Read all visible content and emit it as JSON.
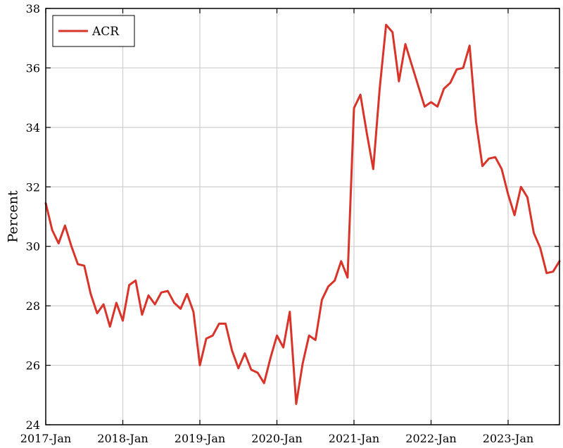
{
  "chart_data": {
    "type": "line",
    "title": "",
    "xlabel": "",
    "ylabel": "Percent",
    "ylim": [
      24,
      38
    ],
    "xlim": [
      "2017-01",
      "2023-09"
    ],
    "yticks": [
      24,
      26,
      28,
      30,
      32,
      34,
      36,
      38
    ],
    "xtick_labels": [
      "2017-Jan",
      "2018-Jan",
      "2019-Jan",
      "2020-Jan",
      "2021-Jan",
      "2022-Jan",
      "2023-Jan"
    ],
    "grid": true,
    "legend_position": "top-left",
    "series_color": "#d8342a",
    "series": [
      {
        "name": "ACR",
        "x": [
          "2017-01",
          "2017-02",
          "2017-03",
          "2017-04",
          "2017-05",
          "2017-06",
          "2017-07",
          "2017-08",
          "2017-09",
          "2017-10",
          "2017-11",
          "2017-12",
          "2018-01",
          "2018-02",
          "2018-03",
          "2018-04",
          "2018-05",
          "2018-06",
          "2018-07",
          "2018-08",
          "2018-09",
          "2018-10",
          "2018-11",
          "2018-12",
          "2019-01",
          "2019-02",
          "2019-03",
          "2019-04",
          "2019-05",
          "2019-06",
          "2019-07",
          "2019-08",
          "2019-09",
          "2019-10",
          "2019-11",
          "2019-12",
          "2020-01",
          "2020-02",
          "2020-03",
          "2020-04",
          "2020-05",
          "2020-06",
          "2020-07",
          "2020-08",
          "2020-09",
          "2020-10",
          "2020-11",
          "2020-12",
          "2021-01",
          "2021-02",
          "2021-03",
          "2021-04",
          "2021-05",
          "2021-06",
          "2021-07",
          "2021-08",
          "2021-09",
          "2021-10",
          "2021-11",
          "2021-12",
          "2022-01",
          "2022-02",
          "2022-03",
          "2022-04",
          "2022-05",
          "2022-06",
          "2022-07",
          "2022-08",
          "2022-09",
          "2022-10",
          "2022-11",
          "2022-12",
          "2023-01",
          "2023-02",
          "2023-03",
          "2023-04",
          "2023-05",
          "2023-06",
          "2023-07",
          "2023-08",
          "2023-09"
        ],
        "values": [
          31.45,
          30.55,
          30.1,
          30.7,
          30.0,
          29.4,
          29.35,
          28.4,
          27.75,
          28.05,
          27.3,
          28.1,
          27.5,
          28.7,
          28.85,
          27.7,
          28.35,
          28.05,
          28.45,
          28.5,
          28.1,
          27.9,
          28.4,
          27.8,
          26.0,
          26.9,
          27.0,
          27.4,
          27.4,
          26.5,
          25.9,
          26.4,
          25.85,
          25.75,
          25.4,
          26.25,
          27.0,
          26.6,
          27.8,
          24.7,
          26.05,
          27.0,
          26.85,
          28.2,
          28.65,
          28.85,
          29.5,
          28.95,
          34.65,
          35.1,
          33.8,
          32.6,
          35.3,
          37.45,
          37.2,
          35.55,
          36.8,
          36.1,
          35.4,
          34.7,
          34.85,
          34.7,
          35.3,
          35.5,
          35.95,
          36.0,
          36.75,
          34.2,
          32.7,
          32.95,
          33.0,
          32.6,
          31.75,
          31.05,
          32.0,
          31.65,
          30.45,
          29.95,
          29.1,
          29.15,
          29.5
        ]
      }
    ]
  }
}
